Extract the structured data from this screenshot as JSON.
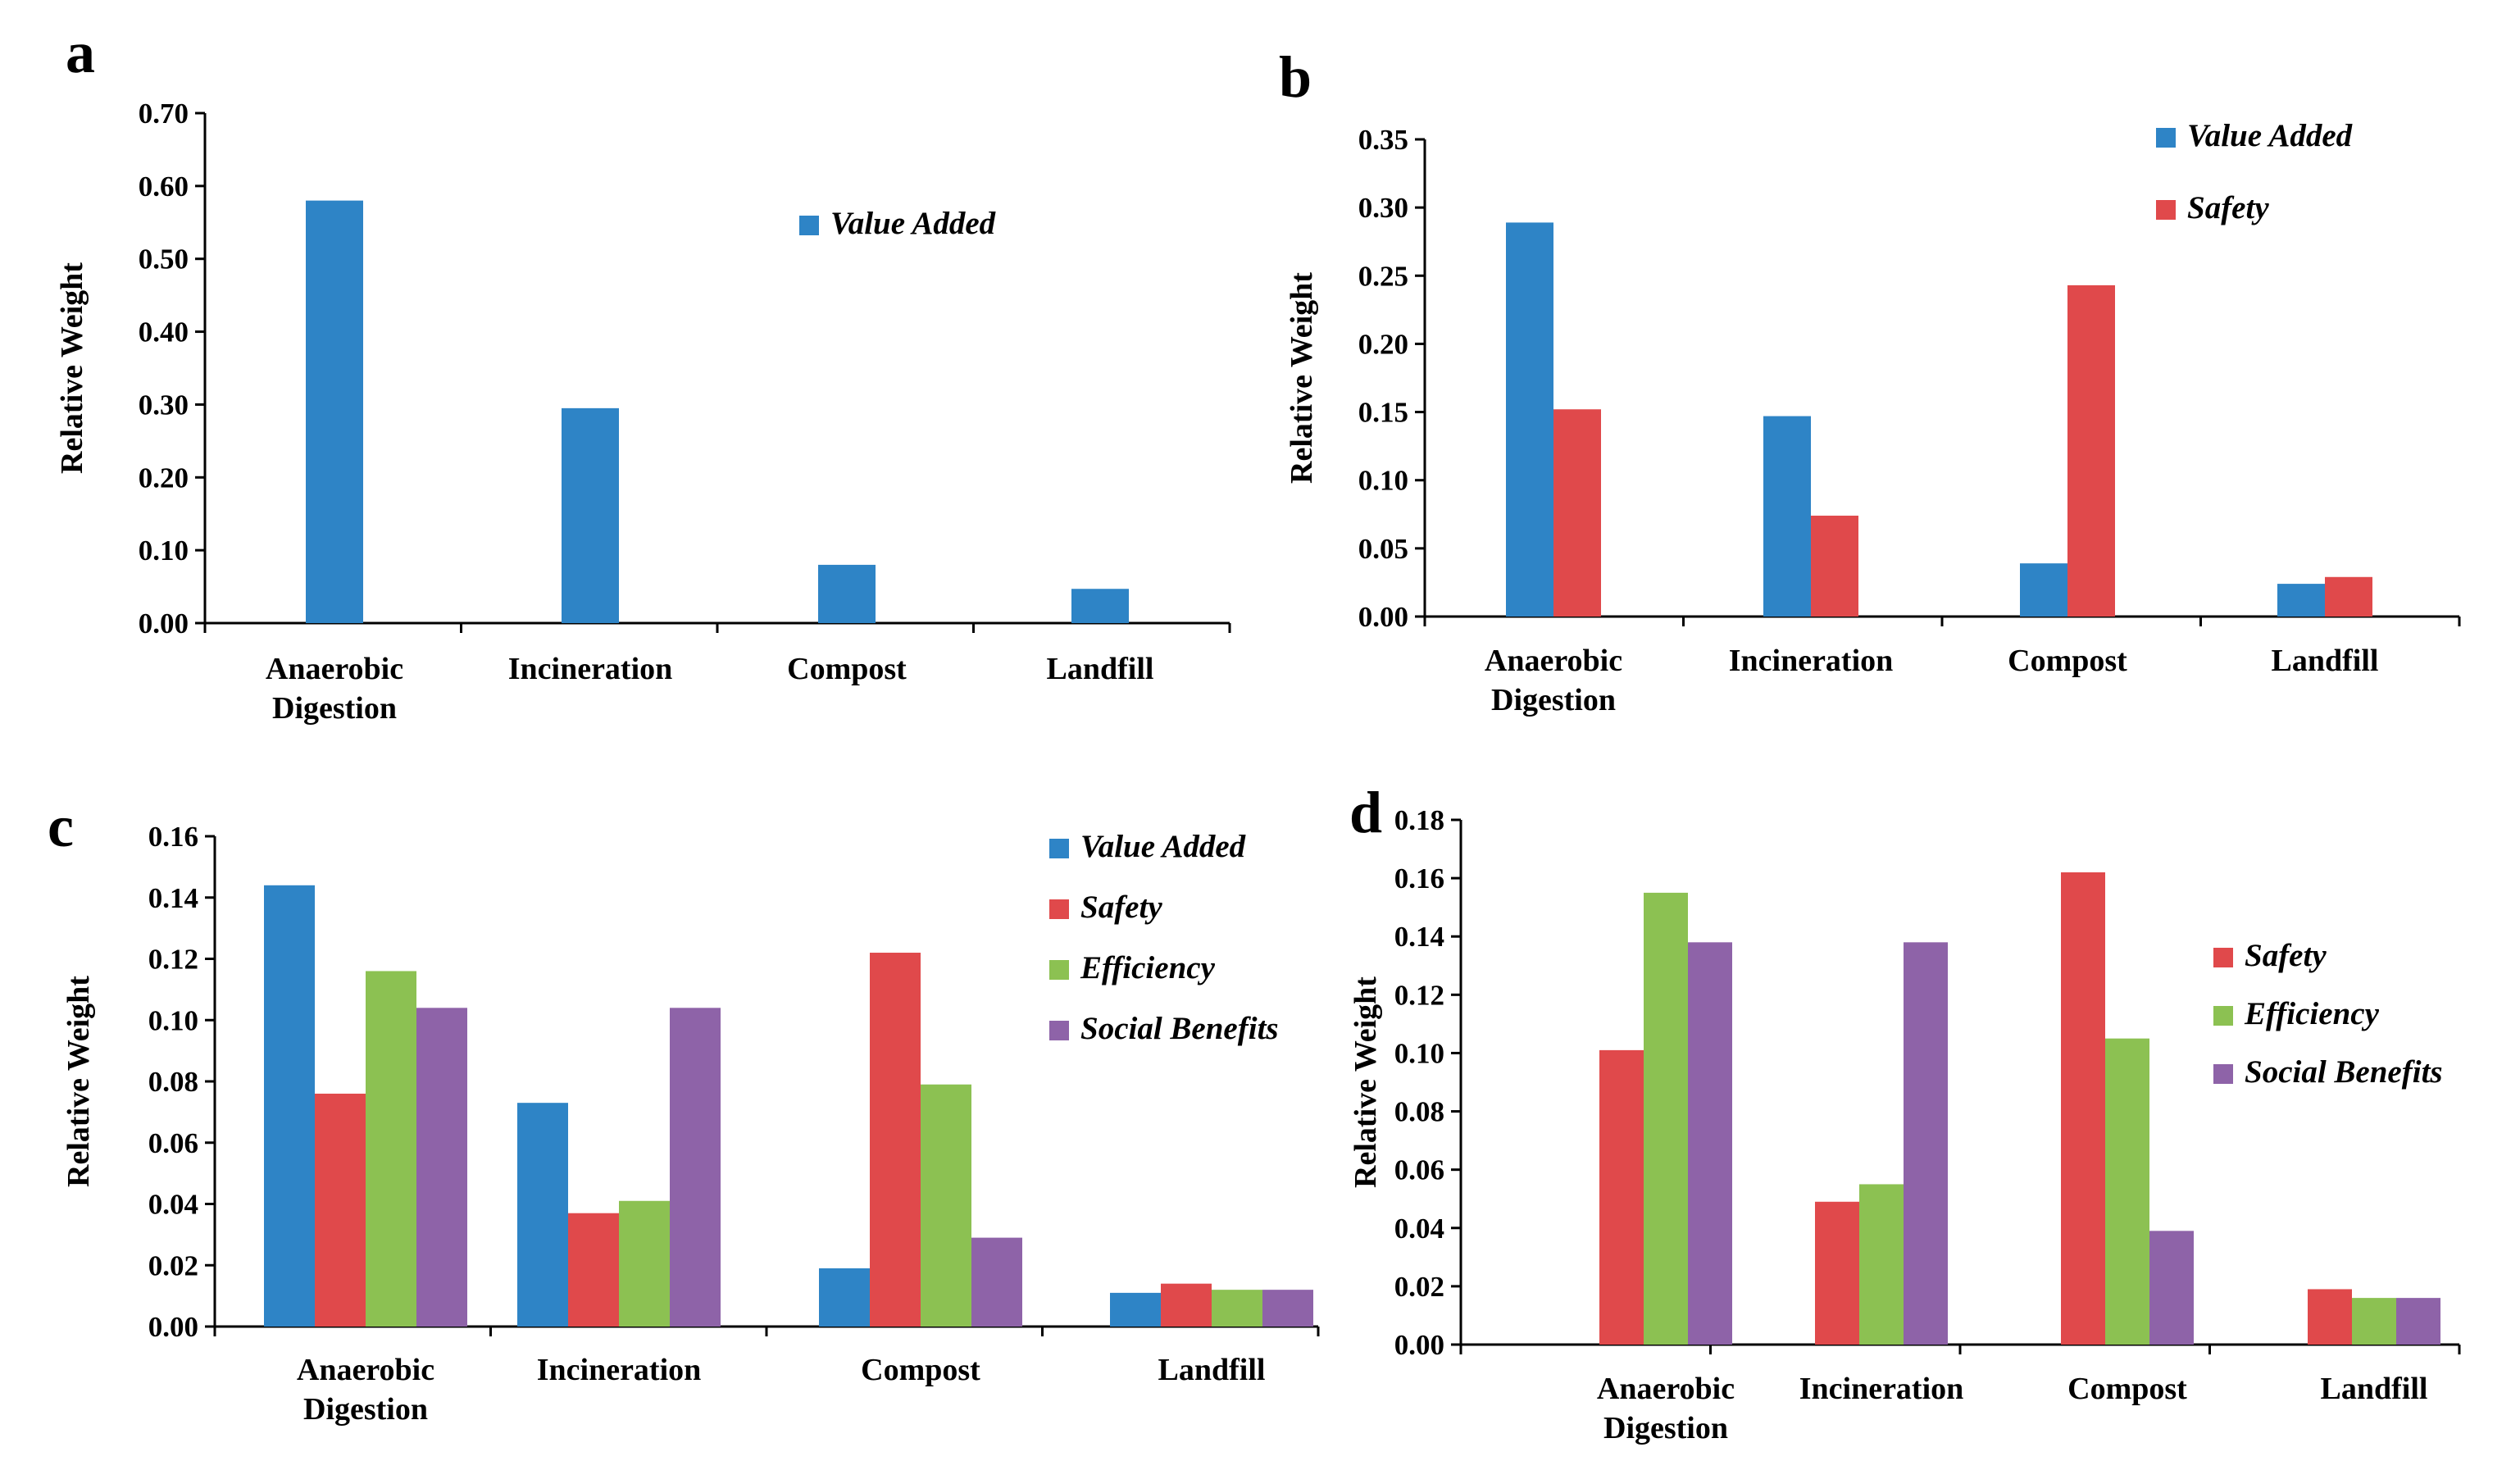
{
  "colors": {
    "Value Added": "#2E84C6",
    "Safety": "#E0494B",
    "Efficiency": "#8CC152",
    "Social Benefits": "#8E63A8"
  },
  "chart_data": [
    {
      "panel": "a",
      "type": "bar",
      "categories": [
        "Anaerobic\nDigestion",
        "Incineration",
        "Compost",
        "Landfill"
      ],
      "series": [
        {
          "name": "Value Added",
          "values": [
            0.58,
            0.295,
            0.08,
            0.047
          ]
        }
      ],
      "ylabel": "Relative Weight",
      "ylim": [
        0,
        0.7
      ],
      "yticks": [
        "0.00",
        "0.10",
        "0.20",
        "0.30",
        "0.40",
        "0.50",
        "0.60",
        "0.70"
      ],
      "legend": "top-right"
    },
    {
      "panel": "b",
      "type": "bar",
      "categories": [
        "Anaerobic\nDigestion",
        "Incineration",
        "Compost",
        "Landfill"
      ],
      "series": [
        {
          "name": "Value Added",
          "values": [
            0.289,
            0.147,
            0.039,
            0.024
          ]
        },
        {
          "name": "Safety",
          "values": [
            0.152,
            0.074,
            0.243,
            0.029
          ]
        }
      ],
      "ylabel": "Relative Weight",
      "ylim": [
        0,
        0.35
      ],
      "yticks": [
        "0.00",
        "0.05",
        "0.10",
        "0.15",
        "0.20",
        "0.25",
        "0.30",
        "0.35"
      ],
      "legend": "top-right"
    },
    {
      "panel": "c",
      "type": "bar",
      "categories": [
        "Anaerobic\nDigestion",
        "Incineration",
        "Compost",
        "Landfill"
      ],
      "series": [
        {
          "name": "Value Added",
          "values": [
            0.144,
            0.073,
            0.019,
            0.011
          ]
        },
        {
          "name": "Safety",
          "values": [
            0.076,
            0.037,
            0.122,
            0.014
          ]
        },
        {
          "name": "Efficiency",
          "values": [
            0.116,
            0.041,
            0.079,
            0.012
          ]
        },
        {
          "name": "Social Benefits",
          "values": [
            0.104,
            0.104,
            0.029,
            0.012
          ]
        }
      ],
      "ylabel": "Relative Weight",
      "ylim": [
        0,
        0.16
      ],
      "yticks": [
        "0.00",
        "0.02",
        "0.04",
        "0.06",
        "0.08",
        "0.10",
        "0.12",
        "0.14",
        "0.16"
      ],
      "legend": "top-right"
    },
    {
      "panel": "d",
      "type": "bar",
      "categories": [
        "Anaerobic\nDigestion",
        "Incineration",
        "Compost",
        "Landfill"
      ],
      "series": [
        {
          "name": "Safety",
          "values": [
            0.101,
            0.049,
            0.162,
            0.019
          ]
        },
        {
          "name": "Efficiency",
          "values": [
            0.155,
            0.055,
            0.105,
            0.016
          ]
        },
        {
          "name": "Social Benefits",
          "values": [
            0.138,
            0.138,
            0.039,
            0.016
          ]
        }
      ],
      "ylabel": "Relative Weight",
      "ylim": [
        0,
        0.18
      ],
      "yticks": [
        "0.00",
        "0.02",
        "0.04",
        "0.06",
        "0.08",
        "0.10",
        "0.12",
        "0.14",
        "0.16",
        "0.18"
      ],
      "legend": "right"
    }
  ]
}
